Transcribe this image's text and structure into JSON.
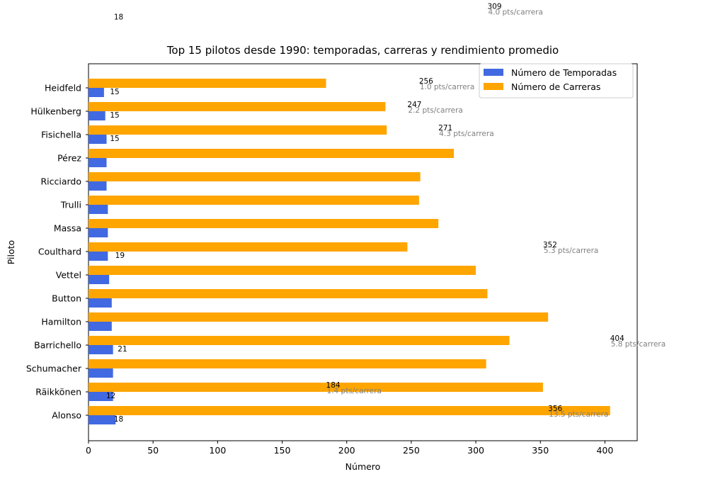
{
  "chart_data": {
    "type": "bar",
    "orientation": "horizontal",
    "title": "Top 15 pilotos desde 1990: temporadas, carreras y rendimiento promedio",
    "xlabel": "Número",
    "ylabel": "Piloto",
    "xlim": [
      0,
      425
    ],
    "xticks": [
      0,
      50,
      100,
      150,
      200,
      250,
      300,
      350,
      400
    ],
    "grid": false,
    "legend_position": "top-right",
    "categories": [
      "Alonso",
      "Räikkönen",
      "Schumacher",
      "Barrichello",
      "Hamilton",
      "Button",
      "Vettel",
      "Coulthard",
      "Massa",
      "Trulli",
      "Ricciardo",
      "Pérez",
      "Fisichella",
      "Hülkenberg",
      "Heidfeld"
    ],
    "series": [
      {
        "name": "Número de Temporadas",
        "color": "#4169e1",
        "values": [
          21,
          19,
          19,
          19,
          18,
          18,
          16,
          15,
          15,
          15,
          14,
          14,
          14,
          13,
          12
        ]
      },
      {
        "name": "Número de Carreras",
        "color": "#ffa500",
        "values": [
          404,
          352,
          308,
          326,
          356,
          309,
          300,
          247,
          271,
          256,
          257,
          283,
          231,
          230,
          184
        ]
      }
    ],
    "annotations": {
      "season_labels": [
        {
          "text": "18",
          "x": 18,
          "row": 0
        },
        {
          "text": "12",
          "x": 12,
          "row": 1
        },
        {
          "text": "21",
          "x": 21,
          "row": 3
        },
        {
          "text": "19",
          "x": 19,
          "row": 7
        },
        {
          "text": "15",
          "x": 15,
          "row": 12
        },
        {
          "text": "15",
          "x": 15,
          "row": 13
        },
        {
          "text": "15",
          "x": 15,
          "row": 14
        },
        {
          "text": "18",
          "x": 18,
          "row": 17.2
        }
      ],
      "race_labels": [
        {
          "races": "356",
          "points": "13.5 pts/carrera",
          "x": 356,
          "row": 0
        },
        {
          "races": "184",
          "points": "1.4 pts/carrera",
          "x": 184,
          "row": 1
        },
        {
          "races": "404",
          "points": "5.8 pts/carrera",
          "x": 404,
          "row": 3
        },
        {
          "races": "352",
          "points": "5.3 pts/carrera",
          "x": 352,
          "row": 7
        },
        {
          "races": "271",
          "points": "4.3 pts/carrera",
          "x": 271,
          "row": 12
        },
        {
          "races": "247",
          "points": "2.2 pts/carrera",
          "x": 247,
          "row": 13
        },
        {
          "races": "256",
          "points": "1.0 pts/carrera",
          "x": 256,
          "row": 14
        },
        {
          "races": "309",
          "points": "4.0 pts/carrera",
          "x": 309,
          "row": 17.2
        }
      ]
    }
  }
}
